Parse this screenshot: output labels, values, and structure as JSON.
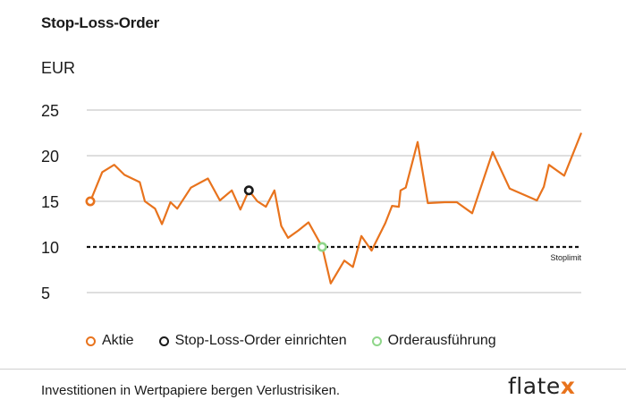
{
  "title": "Stop-Loss-Order",
  "footer": "Investitionen in Wertpapiere bergen Verlustrisiken.",
  "logo": {
    "text": "flate",
    "accent": "x",
    "accent_color": "#e8731d"
  },
  "colors": {
    "series": "#e8731d",
    "order": "#1a1a1a",
    "execution": "#8fd68a",
    "grid": "#bdbdbd"
  },
  "legend": [
    {
      "label": "Aktie",
      "color": "#e8731d"
    },
    {
      "label": "Stop-Loss-Order einrichten",
      "color": "#1a1a1a"
    },
    {
      "label": "Orderausführung",
      "color": "#8fd68a"
    }
  ],
  "chart_data": {
    "type": "line",
    "ylabel": "EUR",
    "ylim": [
      5,
      25
    ],
    "yticks": [
      5,
      10,
      15,
      20,
      25
    ],
    "grid": true,
    "stop_limit": {
      "value": 10,
      "label": "Stoplimit"
    },
    "series": [
      {
        "name": "Aktie",
        "values": [
          15.0,
          18.2,
          19.0,
          17.9,
          17.1,
          15.0,
          14.2,
          12.5,
          14.9,
          14.2,
          16.5,
          17.5,
          15.1,
          16.2,
          14.1,
          16.2,
          15.0,
          14.4,
          16.2,
          12.3,
          11.0,
          11.8,
          12.7,
          10.0,
          6.0,
          8.5,
          7.8,
          11.2,
          9.6,
          12.6,
          14.5,
          14.4,
          16.2,
          16.5,
          21.5,
          14.8,
          14.9,
          14.9,
          13.7,
          20.4,
          16.4,
          15.1,
          16.6,
          19.0,
          17.8,
          22.5
        ],
        "x": [
          0,
          0.7,
          1.4,
          2.0,
          2.9,
          3.2,
          3.8,
          4.2,
          4.7,
          5.1,
          5.9,
          6.9,
          7.6,
          8.3,
          8.8,
          9.3,
          9.8,
          10.3,
          10.8,
          11.2,
          11.6,
          12.2,
          12.8,
          13.6,
          14.1,
          14.9,
          15.4,
          15.9,
          16.5,
          17.3,
          17.7,
          18.1,
          18.2,
          18.5,
          19.2,
          19.8,
          20.8,
          21.5,
          22.4,
          23.6,
          24.6,
          26.2,
          26.6,
          26.9,
          27.8,
          28.8
        ]
      }
    ],
    "markers": [
      {
        "name": "Aktie",
        "x": 0,
        "y": 15.0
      },
      {
        "name": "Stop-Loss-Order einrichten",
        "x": 9.3,
        "y": 16.2
      },
      {
        "name": "Orderausführung",
        "x": 13.6,
        "y": 10.0
      }
    ]
  }
}
